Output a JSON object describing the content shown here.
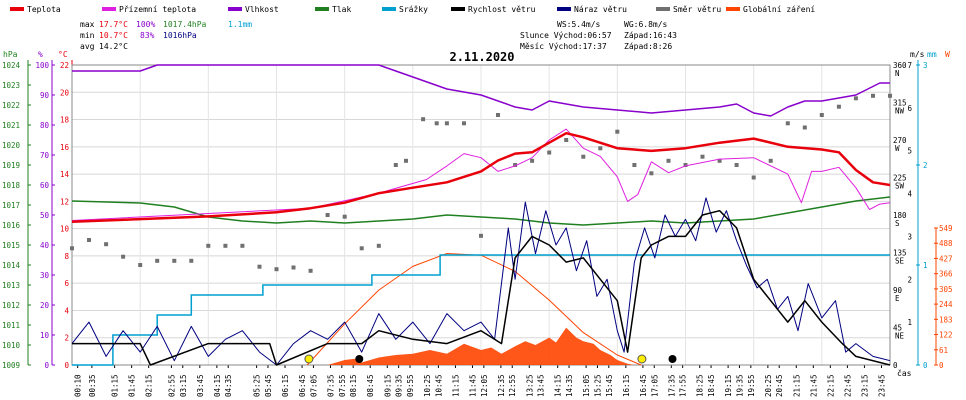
{
  "chart_data": {
    "type": "line",
    "title": "2.11.2020",
    "legend": [
      {
        "label": "Teplota",
        "color": "#e8000b"
      },
      {
        "label": "Přízemní teplota",
        "color": "#e020e0"
      },
      {
        "label": "Vlhkost",
        "color": "#8800cc"
      },
      {
        "label": "Tlak",
        "color": "#208020"
      },
      {
        "label": "Srážky",
        "color": "#00a0d0"
      },
      {
        "label": "Rychlost větru",
        "color": "#000000"
      },
      {
        "label": "Náraz větru",
        "color": "#000080"
      },
      {
        "label": "Směr větru",
        "color": "#707070"
      },
      {
        "label": "Globální záření",
        "color": "#ff4400"
      }
    ],
    "stats": {
      "max_label": "max",
      "max_temp": "17.7°C",
      "max_hum": "100%",
      "max_press": "1017.4hPa",
      "rain_total": "1.1mm",
      "min_label": "min",
      "min_temp": "10.7°C",
      "min_hum": "83%",
      "min_press": "1016hPa",
      "avg_label": "avg",
      "avg_temp": "14.2°C"
    },
    "info": {
      "ws": "WS:5.4m/s",
      "wg": "WG:6.8m/s",
      "sun": "Slunce Východ:06:57",
      "sun_set": "Západ:16:43",
      "moon": "Měsíc Východ:17:37",
      "moon_set": "Západ:8:26"
    },
    "axes": {
      "hpa_unit": "hPa",
      "hpa": [
        "1024",
        "1023",
        "1022",
        "1021",
        "1020",
        "1019",
        "1018",
        "1017",
        "1016",
        "1015",
        "1014",
        "1013",
        "1012",
        "1011",
        "1010",
        "1009"
      ],
      "pct_unit": "%",
      "pct": [
        "100",
        "90",
        "80",
        "70",
        "60",
        "50",
        "40",
        "30",
        "20",
        "10",
        "0"
      ],
      "c_unit": "°C",
      "c": [
        "22",
        "20",
        "18",
        "16",
        "14",
        "12",
        "10",
        "8",
        "6",
        "4",
        "2",
        "0"
      ],
      "dir_unit": "m/s",
      "mm_unit": "mm",
      "wm_unit": "W",
      "dir": [
        [
          "360",
          "N"
        ],
        [
          "315",
          "NW"
        ],
        [
          "270",
          "W"
        ],
        [
          "225",
          "SW"
        ],
        [
          "180",
          "S"
        ],
        [
          "135",
          "SE"
        ],
        [
          "90",
          "E"
        ],
        [
          "45",
          "NE"
        ],
        [
          "0",
          ""
        ]
      ],
      "ms": [
        "7",
        "6",
        "5",
        "4",
        "3",
        "2",
        "1",
        "0"
      ],
      "mm": [
        "3",
        "2",
        "1",
        "0"
      ],
      "wm": [
        "549",
        "488",
        "427",
        "366",
        "305",
        "244",
        "183",
        "122",
        "61",
        "0"
      ],
      "xlabel": "čas",
      "times": [
        "00:10",
        "00:35",
        "01:15",
        "01:45",
        "02:15",
        "02:55",
        "03:15",
        "03:45",
        "04:15",
        "04:35",
        "05:25",
        "05:45",
        "06:15",
        "06:45",
        "07:05",
        "07:35",
        "07:55",
        "08:15",
        "08:45",
        "09:15",
        "09:35",
        "09:55",
        "10:25",
        "10:45",
        "11:15",
        "11:45",
        "12:05",
        "12:35",
        "12:55",
        "13:25",
        "13:45",
        "14:15",
        "14:35",
        "15:05",
        "15:25",
        "15:45",
        "16:15",
        "16:45",
        "17:05",
        "17:35",
        "17:55",
        "18:25",
        "18:45",
        "19:15",
        "19:35",
        "19:55",
        "20:25",
        "20:45",
        "21:15",
        "21:45",
        "22:15",
        "22:45",
        "23:15",
        "23:45"
      ]
    },
    "temperature_c": [
      [
        0,
        10.5
      ],
      [
        2,
        10.7
      ],
      [
        4,
        10.9
      ],
      [
        6,
        11.2
      ],
      [
        7,
        11.5
      ],
      [
        8,
        11.9
      ],
      [
        9,
        12.6
      ],
      [
        10,
        13.0
      ],
      [
        11,
        13.4
      ],
      [
        12,
        14.2
      ],
      [
        12.5,
        15.0
      ],
      [
        13,
        15.5
      ],
      [
        13.5,
        15.6
      ],
      [
        14,
        16.3
      ],
      [
        14.5,
        17.0
      ],
      [
        15,
        16.7
      ],
      [
        16,
        15.9
      ],
      [
        17,
        15.7
      ],
      [
        18,
        15.9
      ],
      [
        19,
        16.3
      ],
      [
        20,
        16.6
      ],
      [
        21,
        16.0
      ],
      [
        22,
        15.8
      ],
      [
        22.5,
        15.6
      ],
      [
        23,
        14.3
      ],
      [
        23.5,
        13.4
      ],
      [
        24,
        13.2
      ]
    ],
    "ground_temp_c": [
      [
        0,
        10.6
      ],
      [
        7,
        11.5
      ],
      [
        9,
        12.6
      ],
      [
        10.4,
        13.6
      ],
      [
        11,
        14.6
      ],
      [
        11.5,
        15.5
      ],
      [
        12,
        15.2
      ],
      [
        12.5,
        14.2
      ],
      [
        13,
        14.6
      ],
      [
        13.5,
        15.2
      ],
      [
        14,
        16.5
      ],
      [
        14.5,
        17.3
      ],
      [
        15,
        15.9
      ],
      [
        15.5,
        15.3
      ],
      [
        16,
        13.8
      ],
      [
        16.3,
        12.0
      ],
      [
        16.6,
        12.5
      ],
      [
        17,
        14.9
      ],
      [
        17.5,
        14.1
      ],
      [
        18,
        14.6
      ],
      [
        19,
        15.1
      ],
      [
        20,
        15.2
      ],
      [
        21,
        14.0
      ],
      [
        21.4,
        11.9
      ],
      [
        21.7,
        14.2
      ],
      [
        22,
        14.2
      ],
      [
        22.5,
        14.5
      ],
      [
        23,
        13.0
      ],
      [
        23.4,
        11.4
      ],
      [
        23.7,
        11.8
      ],
      [
        24,
        11.9
      ]
    ],
    "humidity_pct": [
      [
        0,
        98
      ],
      [
        2,
        98
      ],
      [
        2.5,
        100
      ],
      [
        9,
        100
      ],
      [
        9.5,
        98
      ],
      [
        10.5,
        94
      ],
      [
        11,
        92
      ],
      [
        12,
        90
      ],
      [
        13,
        86
      ],
      [
        13.5,
        85
      ],
      [
        14,
        88
      ],
      [
        14.5,
        87
      ],
      [
        15,
        86
      ],
      [
        16,
        85
      ],
      [
        17,
        84
      ],
      [
        18,
        85
      ],
      [
        19,
        86
      ],
      [
        19.5,
        87
      ],
      [
        20,
        84
      ],
      [
        20.5,
        83
      ],
      [
        21,
        86
      ],
      [
        21.5,
        88
      ],
      [
        22,
        88
      ],
      [
        23,
        90
      ],
      [
        23.7,
        94
      ],
      [
        24,
        94
      ]
    ],
    "pressure_hpa": [
      [
        0,
        1017.2
      ],
      [
        2,
        1017.1
      ],
      [
        3,
        1016.9
      ],
      [
        4,
        1016.4
      ],
      [
        5,
        1016.2
      ],
      [
        6,
        1016.1
      ],
      [
        7,
        1016.2
      ],
      [
        8,
        1016.1
      ],
      [
        9,
        1016.2
      ],
      [
        10,
        1016.3
      ],
      [
        11,
        1016.5
      ],
      [
        12,
        1016.4
      ],
      [
        13,
        1016.3
      ],
      [
        14,
        1016.1
      ],
      [
        15,
        1016.0
      ],
      [
        16,
        1016.1
      ],
      [
        17,
        1016.2
      ],
      [
        18,
        1016.1
      ],
      [
        19,
        1016.2
      ],
      [
        20,
        1016.3
      ],
      [
        21,
        1016.6
      ],
      [
        22,
        1016.9
      ],
      [
        23,
        1017.2
      ],
      [
        24,
        1017.4
      ]
    ],
    "rain_cumulative_mm": [
      [
        0,
        0
      ],
      [
        1.1,
        0
      ],
      [
        1.2,
        0.3
      ],
      [
        2.4,
        0.3
      ],
      [
        2.5,
        0.5
      ],
      [
        3.4,
        0.5
      ],
      [
        3.5,
        0.7
      ],
      [
        5.5,
        0.7
      ],
      [
        5.6,
        0.8
      ],
      [
        8.7,
        0.8
      ],
      [
        8.8,
        0.9
      ],
      [
        10.7,
        0.9
      ],
      [
        10.8,
        1.1
      ],
      [
        24,
        1.1
      ]
    ],
    "wind_speed_ms": [
      [
        0,
        0.5
      ],
      [
        2,
        0.5
      ],
      [
        2.3,
        0
      ],
      [
        4,
        0.5
      ],
      [
        5.8,
        0.5
      ],
      [
        6,
        0
      ],
      [
        7.5,
        0.5
      ],
      [
        8.5,
        0.5
      ],
      [
        9,
        0.8
      ],
      [
        10,
        0.6
      ],
      [
        11,
        0.5
      ],
      [
        12,
        0.8
      ],
      [
        12.6,
        0.5
      ],
      [
        13,
        2.5
      ],
      [
        13.5,
        3.0
      ],
      [
        14,
        2.8
      ],
      [
        14.5,
        2.4
      ],
      [
        15,
        2.5
      ],
      [
        15.5,
        2.0
      ],
      [
        16,
        1.5
      ],
      [
        16.3,
        0.3
      ],
      [
        16.7,
        2.5
      ],
      [
        17,
        2.8
      ],
      [
        17.5,
        3.0
      ],
      [
        18,
        3.0
      ],
      [
        18.5,
        3.5
      ],
      [
        19,
        3.6
      ],
      [
        19.5,
        3.2
      ],
      [
        20,
        2.0
      ],
      [
        20.5,
        1.5
      ],
      [
        21,
        1.0
      ],
      [
        21.5,
        1.5
      ],
      [
        22,
        1.0
      ],
      [
        22.6,
        0.5
      ],
      [
        23,
        0.2
      ],
      [
        24,
        0
      ]
    ],
    "wind_gust_ms": [
      [
        0,
        0.5
      ],
      [
        0.5,
        1.0
      ],
      [
        1,
        0.2
      ],
      [
        1.5,
        0.8
      ],
      [
        2,
        0.3
      ],
      [
        2.5,
        0.9
      ],
      [
        3,
        0.1
      ],
      [
        3.5,
        0.9
      ],
      [
        4,
        0.2
      ],
      [
        4.5,
        0.6
      ],
      [
        5,
        0.8
      ],
      [
        5.5,
        0.3
      ],
      [
        6,
        0
      ],
      [
        6.5,
        0.5
      ],
      [
        7,
        0.8
      ],
      [
        7.5,
        0.6
      ],
      [
        8,
        1.0
      ],
      [
        8.5,
        0.3
      ],
      [
        9,
        1.2
      ],
      [
        9.5,
        0.6
      ],
      [
        10,
        1.0
      ],
      [
        10.5,
        0.5
      ],
      [
        11,
        1.2
      ],
      [
        11.5,
        0.8
      ],
      [
        12,
        1.0
      ],
      [
        12.4,
        0.6
      ],
      [
        12.8,
        3.2
      ],
      [
        13,
        2.0
      ],
      [
        13.3,
        3.8
      ],
      [
        13.6,
        2.6
      ],
      [
        13.9,
        3.6
      ],
      [
        14.2,
        2.8
      ],
      [
        14.5,
        3.2
      ],
      [
        14.8,
        2.2
      ],
      [
        15.1,
        2.9
      ],
      [
        15.4,
        1.6
      ],
      [
        15.7,
        2.0
      ],
      [
        16,
        0.8
      ],
      [
        16.2,
        0.3
      ],
      [
        16.5,
        2.4
      ],
      [
        16.8,
        3.2
      ],
      [
        17.1,
        2.5
      ],
      [
        17.4,
        3.5
      ],
      [
        17.7,
        3.0
      ],
      [
        18,
        3.4
      ],
      [
        18.3,
        2.9
      ],
      [
        18.6,
        3.9
      ],
      [
        18.9,
        3.1
      ],
      [
        19.2,
        3.6
      ],
      [
        19.5,
        2.9
      ],
      [
        19.8,
        2.3
      ],
      [
        20.1,
        1.8
      ],
      [
        20.4,
        2.0
      ],
      [
        20.7,
        1.3
      ],
      [
        21,
        1.6
      ],
      [
        21.3,
        0.8
      ],
      [
        21.6,
        1.9
      ],
      [
        22,
        1.1
      ],
      [
        22.4,
        1.5
      ],
      [
        22.7,
        0.3
      ],
      [
        23,
        0.5
      ],
      [
        23.5,
        0.2
      ],
      [
        24,
        0.1
      ]
    ],
    "wind_dir_deg": [
      [
        0,
        140
      ],
      [
        0.5,
        150
      ],
      [
        1,
        145
      ],
      [
        1.5,
        130
      ],
      [
        2,
        120
      ],
      [
        2.5,
        125
      ],
      [
        3,
        125
      ],
      [
        3.5,
        125
      ],
      [
        4,
        143
      ],
      [
        4.5,
        143
      ],
      [
        5,
        143
      ],
      [
        5.5,
        118
      ],
      [
        6,
        115
      ],
      [
        6.5,
        117
      ],
      [
        7,
        113
      ],
      [
        7.5,
        180
      ],
      [
        8,
        178
      ],
      [
        8.5,
        140
      ],
      [
        9,
        143
      ],
      [
        9.5,
        240
      ],
      [
        9.8,
        245
      ],
      [
        10.3,
        295
      ],
      [
        10.7,
        290
      ],
      [
        11,
        290
      ],
      [
        11.5,
        290
      ],
      [
        12,
        155
      ],
      [
        12.5,
        300
      ],
      [
        13,
        240
      ],
      [
        13.5,
        245
      ],
      [
        14,
        255
      ],
      [
        14.5,
        270
      ],
      [
        15,
        250
      ],
      [
        15.5,
        260
      ],
      [
        16,
        280
      ],
      [
        16.5,
        240
      ],
      [
        17,
        230
      ],
      [
        17.5,
        245
      ],
      [
        18,
        240
      ],
      [
        18.5,
        250
      ],
      [
        19,
        245
      ],
      [
        19.5,
        240
      ],
      [
        20,
        225
      ],
      [
        20.5,
        245
      ],
      [
        21,
        290
      ],
      [
        21.5,
        285
      ],
      [
        22,
        300
      ],
      [
        22.5,
        310
      ],
      [
        23,
        320
      ],
      [
        23.5,
        323
      ],
      [
        24,
        323
      ]
    ],
    "solar_wm2": [
      [
        0,
        0
      ],
      [
        7.5,
        0
      ],
      [
        8,
        20
      ],
      [
        8.3,
        25
      ],
      [
        8.5,
        10
      ],
      [
        9,
        30
      ],
      [
        9.5,
        40
      ],
      [
        10,
        45
      ],
      [
        10.5,
        60
      ],
      [
        11,
        45
      ],
      [
        11.5,
        85
      ],
      [
        12,
        60
      ],
      [
        12.3,
        70
      ],
      [
        12.6,
        45
      ],
      [
        13,
        75
      ],
      [
        13.3,
        95
      ],
      [
        13.6,
        80
      ],
      [
        14,
        110
      ],
      [
        14.2,
        90
      ],
      [
        14.5,
        150
      ],
      [
        14.8,
        110
      ],
      [
        15,
        95
      ],
      [
        15.3,
        85
      ],
      [
        15.5,
        60
      ],
      [
        15.8,
        40
      ],
      [
        16,
        20
      ],
      [
        16.3,
        5
      ],
      [
        16.5,
        0
      ],
      [
        24,
        0
      ]
    ],
    "clear_sky_wm2": [
      [
        6.9,
        0
      ],
      [
        8,
        165
      ],
      [
        9,
        300
      ],
      [
        10,
        395
      ],
      [
        11,
        447
      ],
      [
        12,
        440
      ],
      [
        13,
        375
      ],
      [
        14,
        260
      ],
      [
        15,
        130
      ],
      [
        16,
        40
      ],
      [
        16.7,
        0
      ]
    ]
  }
}
